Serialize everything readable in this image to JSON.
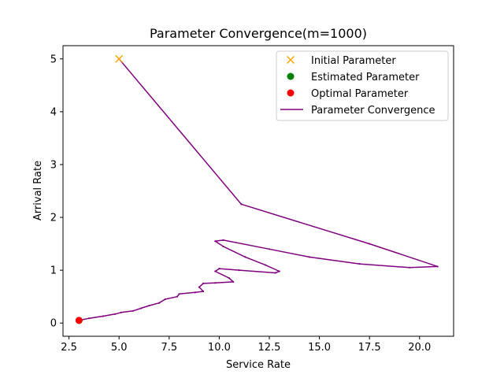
{
  "chart_data": {
    "type": "line",
    "title": "Parameter Convergence(m=1000)",
    "xlabel": "Service Rate",
    "ylabel": "Arrival Rate",
    "xlim": [
      2.2,
      21.7
    ],
    "ylim": [
      -0.25,
      5.25
    ],
    "xticks": [
      2.5,
      5.0,
      7.5,
      10.0,
      12.5,
      15.0,
      17.5,
      20.0
    ],
    "xtick_labels": [
      "2.5",
      "5.0",
      "7.5",
      "10.0",
      "12.5",
      "15.0",
      "17.5",
      "20.0"
    ],
    "yticks": [
      0,
      1,
      2,
      3,
      4,
      5
    ],
    "ytick_labels": [
      "0",
      "1",
      "2",
      "3",
      "4",
      "5"
    ],
    "grid": false,
    "legend_position": "top-right",
    "legend": [
      {
        "label": "Initial Parameter",
        "marker": "x",
        "color": "#ffa500"
      },
      {
        "label": "Estimated Parameter",
        "marker": "circle",
        "color": "#008000"
      },
      {
        "label": "Optimal Parameter",
        "marker": "circle",
        "color": "#ff0000"
      },
      {
        "label": "Parameter Convergence",
        "marker": "line",
        "color": "#800080"
      }
    ],
    "initial_parameter": {
      "x": 5.0,
      "y": 5.0
    },
    "estimated_parameter": {
      "x": 3.0,
      "y": 0.05
    },
    "optimal_parameter": {
      "x": 3.0,
      "y": 0.05
    },
    "series": [
      {
        "name": "Parameter Convergence",
        "color": "#800080",
        "x": [
          5.0,
          11.1,
          17.5,
          20.9,
          19.5,
          17.0,
          14.5,
          12.5,
          10.2,
          9.8,
          10.2,
          11.3,
          12.3,
          13.0,
          12.8,
          11.0,
          10.0,
          9.8,
          10.5,
          10.7,
          9.8,
          9.2,
          9.0,
          9.2,
          8.8,
          8.0,
          7.9,
          7.3,
          7.0,
          6.5,
          6.1,
          5.7,
          5.1,
          4.8,
          4.2,
          3.5,
          3.0
        ],
        "y": [
          5.0,
          2.25,
          1.5,
          1.07,
          1.05,
          1.12,
          1.25,
          1.4,
          1.57,
          1.55,
          1.45,
          1.25,
          1.1,
          0.98,
          0.95,
          1.0,
          1.03,
          0.98,
          0.85,
          0.78,
          0.76,
          0.75,
          0.68,
          0.6,
          0.58,
          0.55,
          0.5,
          0.45,
          0.38,
          0.33,
          0.28,
          0.23,
          0.2,
          0.17,
          0.13,
          0.09,
          0.05
        ]
      }
    ]
  }
}
